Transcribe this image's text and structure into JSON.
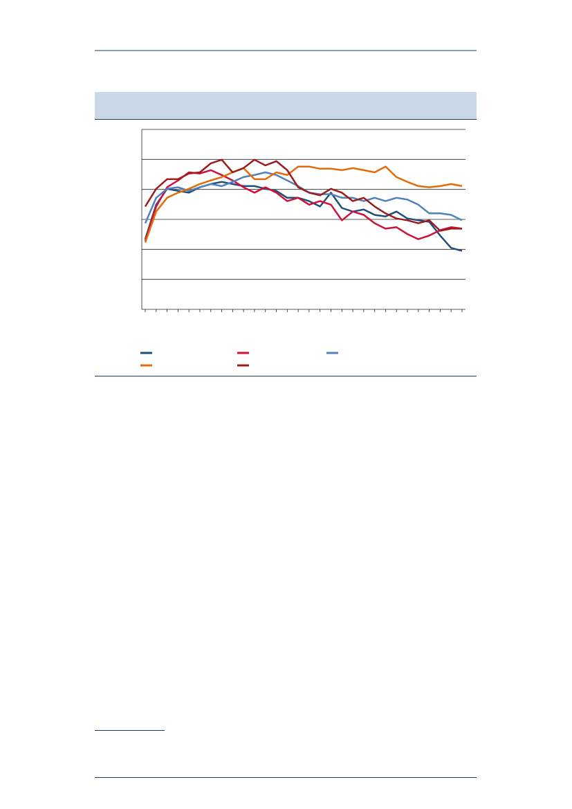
{
  "chart_data": {
    "type": "line",
    "categories": [
      null,
      null,
      null,
      null,
      null,
      null,
      null,
      null,
      null,
      null,
      null,
      null,
      null,
      null,
      null,
      null,
      null,
      null,
      null,
      null,
      null,
      null,
      null,
      null,
      null,
      null,
      null,
      null,
      null,
      null
    ],
    "series": [
      {
        "color": "#1f4e79",
        "values": [
          2.34,
          3.49,
          4.02,
          3.95,
          3.89,
          4.07,
          4.18,
          4.25,
          4.18,
          4.11,
          4.11,
          4.02,
          3.95,
          3.72,
          3.72,
          3.61,
          3.43,
          3.89,
          3.38,
          3.26,
          3.33,
          3.15,
          3.1,
          3.26,
          3.03,
          2.97,
          2.92,
          2.46,
          2.05,
          1.95
        ]
      },
      {
        "color": "#d0103a",
        "values": [
          2.28,
          3.43,
          4.07,
          4.3,
          4.57,
          4.53,
          4.64,
          4.48,
          4.3,
          4.07,
          3.89,
          4.07,
          3.89,
          3.61,
          3.72,
          3.49,
          3.61,
          3.49,
          2.97,
          3.26,
          3.15,
          2.87,
          2.69,
          2.74,
          2.51,
          2.34,
          2.46,
          2.64,
          2.74,
          2.69
        ]
      },
      {
        "color": "#4f81bd",
        "values": [
          2.87,
          3.72,
          4.02,
          4.07,
          3.95,
          4.07,
          4.18,
          4.11,
          4.25,
          4.41,
          4.48,
          4.57,
          4.48,
          4.3,
          4.11,
          3.89,
          3.84,
          3.84,
          3.72,
          3.72,
          3.61,
          3.72,
          3.61,
          3.72,
          3.66,
          3.49,
          3.2,
          3.2,
          3.15,
          2.97
        ]
      },
      {
        "color": "#e36c09",
        "values": [
          2.23,
          3.26,
          3.72,
          3.89,
          4.02,
          4.18,
          4.3,
          4.41,
          4.57,
          4.71,
          4.34,
          4.34,
          4.57,
          4.48,
          4.76,
          4.76,
          4.69,
          4.69,
          4.64,
          4.71,
          4.64,
          4.57,
          4.76,
          4.41,
          4.25,
          4.11,
          4.07,
          4.11,
          4.18,
          4.11
        ]
      },
      {
        "color": "#9c1c1c",
        "values": [
          3.43,
          4.02,
          4.34,
          4.34,
          4.53,
          4.57,
          4.87,
          4.99,
          4.57,
          4.71,
          4.99,
          4.8,
          4.94,
          4.64,
          4.07,
          3.89,
          3.8,
          4.02,
          3.89,
          3.61,
          3.72,
          3.43,
          3.2,
          3.03,
          2.97,
          2.87,
          2.97,
          2.62,
          2.69,
          2.69
        ]
      }
    ],
    "ylim": [
      0,
      6
    ],
    "yticks": [
      0,
      1,
      2,
      3,
      4,
      5,
      6
    ],
    "grid": true
  }
}
